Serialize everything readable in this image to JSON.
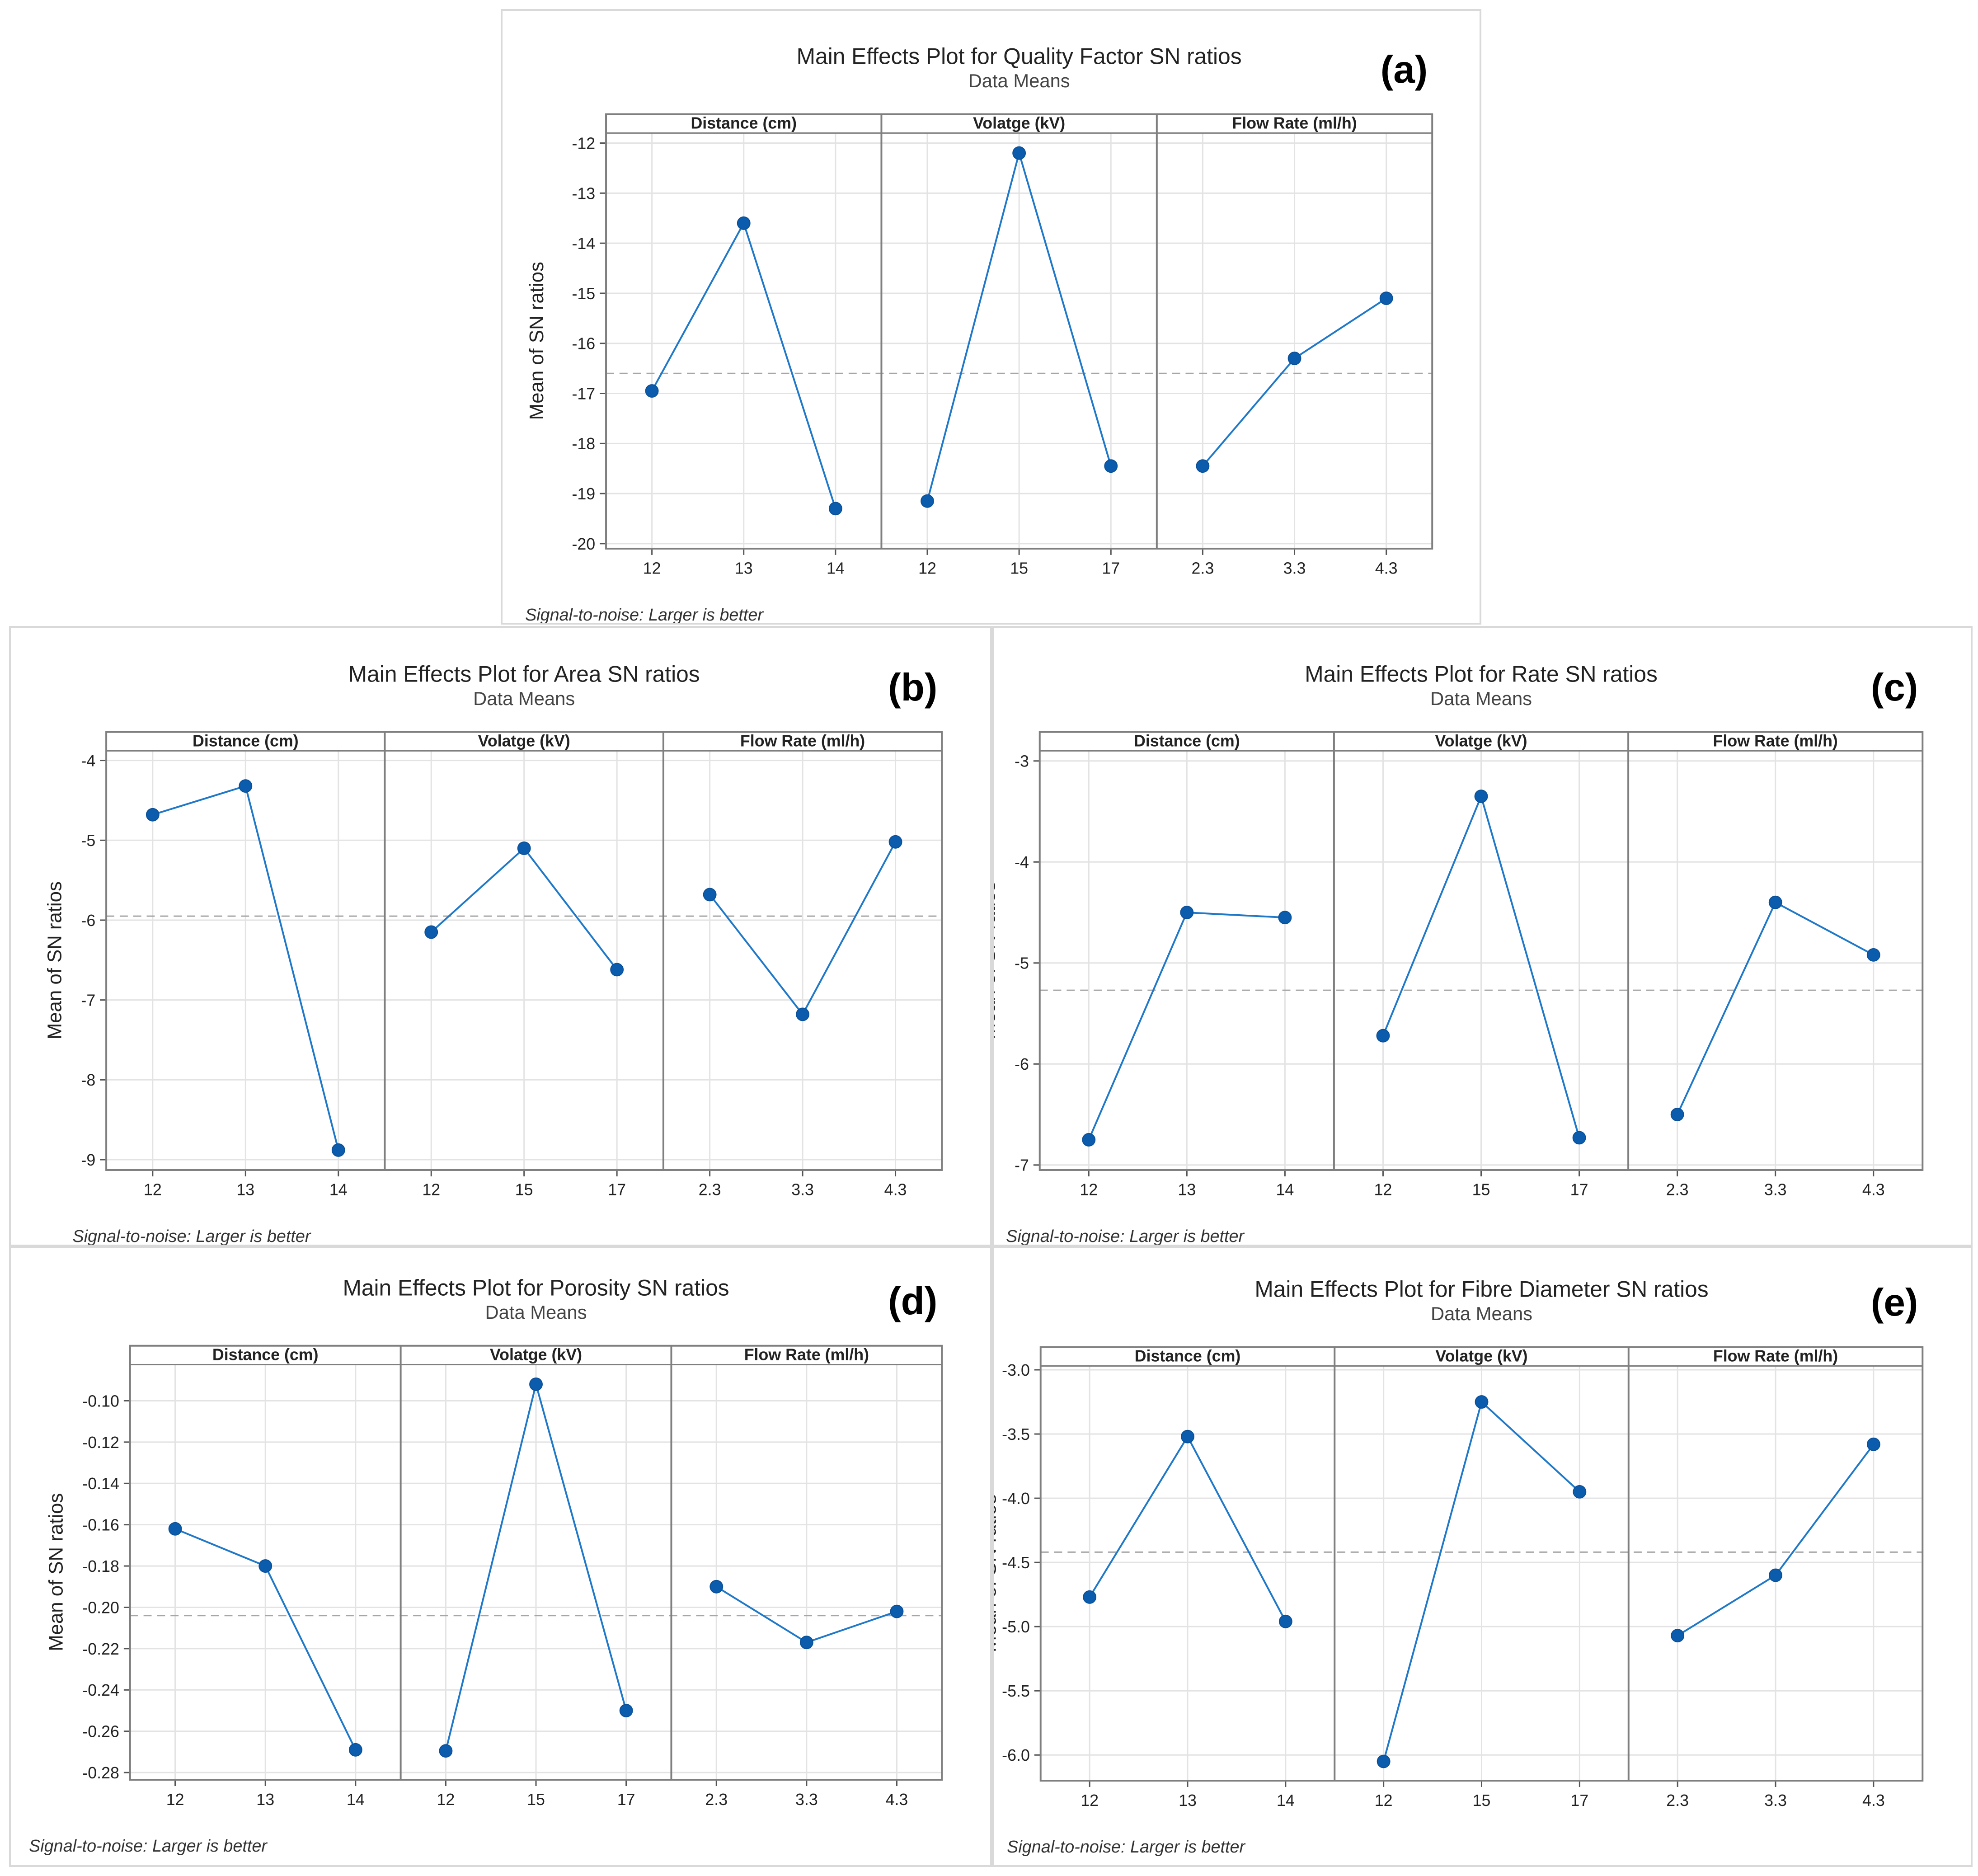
{
  "chart_data": [
    {
      "type": "line",
      "letter": "(a)",
      "title": "Main Effects Plot for Quality Factor SN ratios",
      "subtitle": "Data Means",
      "ylabel": "Mean of SN ratios",
      "footer": "Signal-to-noise: Larger is better",
      "ylim": [
        -20.1,
        -11.8
      ],
      "yticks": [
        "-20",
        "-19",
        "-18",
        "-17",
        "-16",
        "-15",
        "-14",
        "-13",
        "-12"
      ],
      "mean_line": -16.6,
      "factors": [
        {
          "name": "Distance (cm)",
          "levels": [
            "12",
            "13",
            "14"
          ],
          "values": [
            -16.95,
            -13.6,
            -19.3
          ]
        },
        {
          "name": "Volatge (kV)",
          "levels": [
            "12",
            "15",
            "17"
          ],
          "values": [
            -19.15,
            -12.2,
            -18.45
          ]
        },
        {
          "name": "Flow Rate (ml/h)",
          "levels": [
            "2.3",
            "3.3",
            "4.3"
          ],
          "values": [
            -18.45,
            -16.3,
            -15.1
          ]
        }
      ]
    },
    {
      "type": "line",
      "letter": "(b)",
      "title": "Main Effects Plot for Area SN ratios",
      "subtitle": "Data Means",
      "ylabel": "Mean of SN ratios",
      "footer": "Signal-to-noise: Larger is better",
      "ylim": [
        -9.13,
        -3.88
      ],
      "yticks": [
        "-9",
        "-8",
        "-7",
        "-6",
        "-5",
        "-4"
      ],
      "mean_line": -5.95,
      "factors": [
        {
          "name": "Distance (cm)",
          "levels": [
            "12",
            "13",
            "14"
          ],
          "values": [
            -4.68,
            -4.32,
            -8.88
          ]
        },
        {
          "name": "Volatge (kV)",
          "levels": [
            "12",
            "15",
            "17"
          ],
          "values": [
            -6.15,
            -5.1,
            -6.62
          ]
        },
        {
          "name": "Flow Rate (ml/h)",
          "levels": [
            "2.3",
            "3.3",
            "4.3"
          ],
          "values": [
            -5.68,
            -7.18,
            -5.02
          ]
        }
      ]
    },
    {
      "type": "line",
      "letter": "(c)",
      "title": "Main Effects Plot for Rate SN ratios",
      "subtitle": "Data Means",
      "ylabel": "Mean of SN ratios",
      "footer": "Signal-to-noise: Larger is better",
      "ylim": [
        -7.05,
        -2.9
      ],
      "yticks": [
        "-7",
        "-6",
        "-5",
        "-4",
        "-3"
      ],
      "mean_line": -5.27,
      "factors": [
        {
          "name": "Distance (cm)",
          "levels": [
            "12",
            "13",
            "14"
          ],
          "values": [
            -6.75,
            -4.5,
            -4.55
          ]
        },
        {
          "name": "Volatge (kV)",
          "levels": [
            "12",
            "15",
            "17"
          ],
          "values": [
            -5.72,
            -3.35,
            -6.73
          ]
        },
        {
          "name": "Flow Rate (ml/h)",
          "levels": [
            "2.3",
            "3.3",
            "4.3"
          ],
          "values": [
            -6.5,
            -4.4,
            -4.92
          ]
        }
      ]
    },
    {
      "type": "line",
      "letter": "(d)",
      "title": "Main Effects Plot for Porosity SN ratios",
      "subtitle": "Data Means",
      "ylabel": "Mean of SN ratios",
      "footer": "Signal-to-noise: Larger is better",
      "ylim": [
        -0.2835,
        -0.0825
      ],
      "yticks": [
        "-0.28",
        "-0.26",
        "-0.24",
        "-0.22",
        "-0.20",
        "-0.18",
        "-0.16",
        "-0.14",
        "-0.12",
        "-0.10"
      ],
      "mean_line": -0.204,
      "factors": [
        {
          "name": "Distance (cm)",
          "levels": [
            "12",
            "13",
            "14"
          ],
          "values": [
            -0.162,
            -0.18,
            -0.269
          ]
        },
        {
          "name": "Volatge (kV)",
          "levels": [
            "12",
            "15",
            "17"
          ],
          "values": [
            -0.2695,
            -0.092,
            -0.25
          ]
        },
        {
          "name": "Flow Rate (ml/h)",
          "levels": [
            "2.3",
            "3.3",
            "4.3"
          ],
          "values": [
            -0.19,
            -0.217,
            -0.202
          ]
        }
      ]
    },
    {
      "type": "line",
      "letter": "(e)",
      "title": "Main Effects Plot for Fibre Diameter SN ratios",
      "subtitle": "Data Means",
      "ylabel": "Mean of SN ratios",
      "footer": "Signal-to-noise: Larger is better",
      "ylim": [
        -6.2,
        -2.97
      ],
      "yticks": [
        "-6.0",
        "-5.5",
        "-5.0",
        "-4.5",
        "-4.0",
        "-3.5",
        "-3.0"
      ],
      "mean_line": -4.42,
      "factors": [
        {
          "name": "Distance (cm)",
          "levels": [
            "12",
            "13",
            "14"
          ],
          "values": [
            -4.77,
            -3.52,
            -4.96
          ]
        },
        {
          "name": "Volatge (kV)",
          "levels": [
            "12",
            "15",
            "17"
          ],
          "values": [
            -6.05,
            -3.25,
            -3.95
          ]
        },
        {
          "name": "Flow Rate (ml/h)",
          "levels": [
            "2.3",
            "3.3",
            "4.3"
          ],
          "values": [
            -5.07,
            -4.6,
            -3.58
          ]
        }
      ]
    }
  ]
}
